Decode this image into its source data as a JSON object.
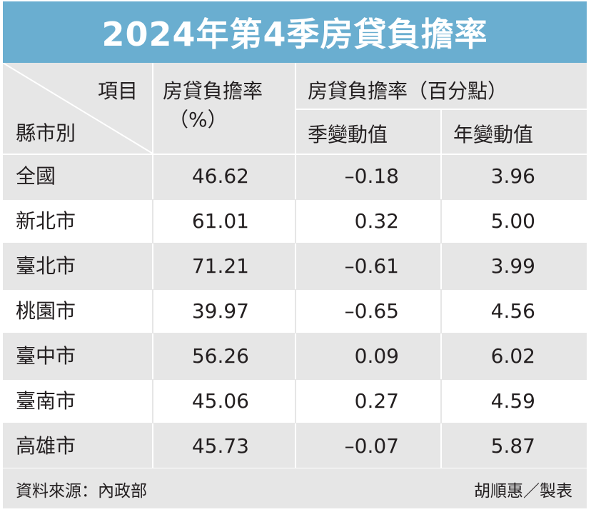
{
  "title": "2024年第4季房貸負擔率",
  "header": {
    "item_label": "項目",
    "region_label": "縣市別",
    "rate_label_line1": "房貸負擔率",
    "rate_label_line2": "（%）",
    "change_group_label": "房貸負擔率（百分點）",
    "quarter_change_label": "季變動值",
    "year_change_label": "年變動值"
  },
  "rows": [
    {
      "region": "全國",
      "rate": "46.62",
      "quarter_change": "–0.18",
      "year_change": "3.96"
    },
    {
      "region": "新北市",
      "rate": "61.01",
      "quarter_change": "0.32",
      "year_change": "5.00"
    },
    {
      "region": "臺北市",
      "rate": "71.21",
      "quarter_change": "–0.61",
      "year_change": "3.99"
    },
    {
      "region": "桃園市",
      "rate": "39.97",
      "quarter_change": "–0.65",
      "year_change": "4.56"
    },
    {
      "region": "臺中市",
      "rate": "56.26",
      "quarter_change": "0.09",
      "year_change": "6.02"
    },
    {
      "region": "臺南市",
      "rate": "45.06",
      "quarter_change": "0.27",
      "year_change": "4.59"
    },
    {
      "region": "高雄市",
      "rate": "45.73",
      "quarter_change": "–0.07",
      "year_change": "5.87"
    }
  ],
  "footer": {
    "source": "資料來源：內政部",
    "credit": "胡順惠／製表"
  },
  "colors": {
    "title_bg": "#6aaed0",
    "header_bg": "#e6e6e6",
    "row_alt": "#ffffff"
  }
}
